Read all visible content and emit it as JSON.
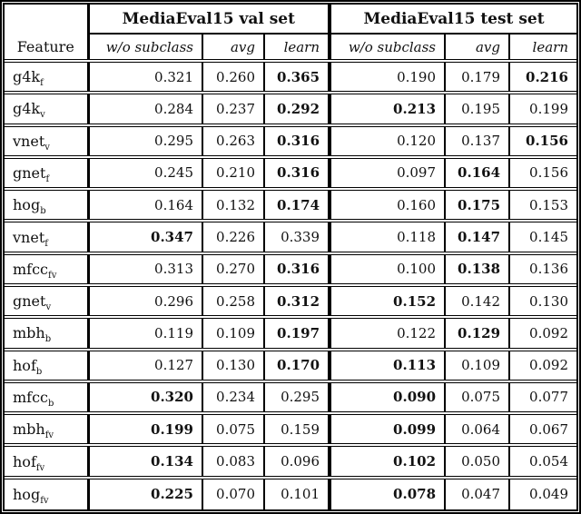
{
  "page": {
    "background_color": "#ffffff",
    "text_color": "#111111",
    "rule_color": "#000000"
  },
  "table": {
    "type": "table",
    "groups": [
      {
        "label": "MediaEval15 val set"
      },
      {
        "label": "MediaEval15 test set"
      }
    ],
    "feature_header": "Feature",
    "sub_headers": [
      "w/o subclass",
      "avg",
      "learn"
    ],
    "rows": [
      {
        "feature_base": "g4k",
        "feature_sub": "f",
        "values": [
          "0.321",
          "0.260",
          "0.365",
          "0.190",
          "0.179",
          "0.216"
        ],
        "bold": [
          false,
          false,
          true,
          false,
          false,
          true
        ]
      },
      {
        "feature_base": "g4k",
        "feature_sub": "v",
        "values": [
          "0.284",
          "0.237",
          "0.292",
          "0.213",
          "0.195",
          "0.199"
        ],
        "bold": [
          false,
          false,
          true,
          true,
          false,
          false
        ]
      },
      {
        "feature_base": "vnet",
        "feature_sub": "v",
        "values": [
          "0.295",
          "0.263",
          "0.316",
          "0.120",
          "0.137",
          "0.156"
        ],
        "bold": [
          false,
          false,
          true,
          false,
          false,
          true
        ]
      },
      {
        "feature_base": "gnet",
        "feature_sub": "f",
        "values": [
          "0.245",
          "0.210",
          "0.316",
          "0.097",
          "0.164",
          "0.156"
        ],
        "bold": [
          false,
          false,
          true,
          false,
          true,
          false
        ]
      },
      {
        "feature_base": "hog",
        "feature_sub": "b",
        "values": [
          "0.164",
          "0.132",
          "0.174",
          "0.160",
          "0.175",
          "0.153"
        ],
        "bold": [
          false,
          false,
          true,
          false,
          true,
          false
        ]
      },
      {
        "feature_base": "vnet",
        "feature_sub": "f",
        "values": [
          "0.347",
          "0.226",
          "0.339",
          "0.118",
          "0.147",
          "0.145"
        ],
        "bold": [
          true,
          false,
          false,
          false,
          true,
          false
        ]
      },
      {
        "feature_base": "mfcc",
        "feature_sub": "fv",
        "values": [
          "0.313",
          "0.270",
          "0.316",
          "0.100",
          "0.138",
          "0.136"
        ],
        "bold": [
          false,
          false,
          true,
          false,
          true,
          false
        ]
      },
      {
        "feature_base": "gnet",
        "feature_sub": "v",
        "values": [
          "0.296",
          "0.258",
          "0.312",
          "0.152",
          "0.142",
          "0.130"
        ],
        "bold": [
          false,
          false,
          true,
          true,
          false,
          false
        ]
      },
      {
        "feature_base": "mbh",
        "feature_sub": "b",
        "values": [
          "0.119",
          "0.109",
          "0.197",
          "0.122",
          "0.129",
          "0.092"
        ],
        "bold": [
          false,
          false,
          true,
          false,
          true,
          false
        ]
      },
      {
        "feature_base": "hof",
        "feature_sub": "b",
        "values": [
          "0.127",
          "0.130",
          "0.170",
          "0.113",
          "0.109",
          "0.092"
        ],
        "bold": [
          false,
          false,
          true,
          true,
          false,
          false
        ]
      },
      {
        "feature_base": "mfcc",
        "feature_sub": "b",
        "values": [
          "0.320",
          "0.234",
          "0.295",
          "0.090",
          "0.075",
          "0.077"
        ],
        "bold": [
          true,
          false,
          false,
          true,
          false,
          false
        ]
      },
      {
        "feature_base": "mbh",
        "feature_sub": "fv",
        "values": [
          "0.199",
          "0.075",
          "0.159",
          "0.099",
          "0.064",
          "0.067"
        ],
        "bold": [
          true,
          false,
          false,
          true,
          false,
          false
        ]
      },
      {
        "feature_base": "hof",
        "feature_sub": "fv",
        "values": [
          "0.134",
          "0.083",
          "0.096",
          "0.102",
          "0.050",
          "0.054"
        ],
        "bold": [
          true,
          false,
          false,
          true,
          false,
          false
        ]
      },
      {
        "feature_base": "hog",
        "feature_sub": "fv",
        "values": [
          "0.225",
          "0.070",
          "0.101",
          "0.078",
          "0.047",
          "0.049"
        ],
        "bold": [
          true,
          false,
          false,
          true,
          false,
          false
        ]
      }
    ]
  }
}
